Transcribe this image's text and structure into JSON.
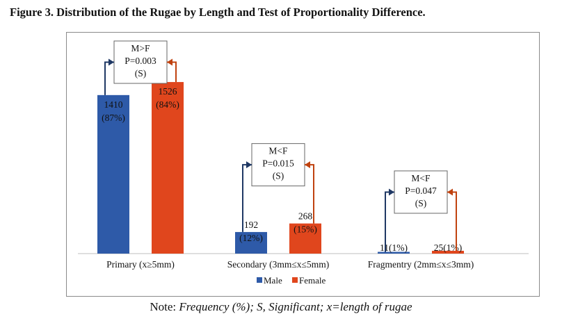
{
  "figure_title": "Figure 3. Distribution of the Rugae by Length and Test of Proportionality Difference.",
  "note": {
    "prefix": "Note: ",
    "text": "Frequency (%); S, Significant; x=length of  rugae"
  },
  "colors": {
    "male": "#2e5aa8",
    "female": "#e0461d",
    "frame": "#8a8a8a",
    "axis": "#bfbfbf",
    "arrow_male": "#1f3864",
    "arrow_female": "#c0420f"
  },
  "chart_data": {
    "type": "bar",
    "title": "Figure 3. Distribution of the Rugae by Length and Test of Proportionality Difference.",
    "categories": [
      "Primary (x≥5mm)",
      "Secondary (3mm≤x≤5mm)",
      "Fragmentry (2mm≤x≤3mm)"
    ],
    "series": [
      {
        "name": "Male",
        "color": "#2e5aa8",
        "values": [
          1410,
          192,
          11
        ],
        "percents": [
          "87%",
          "12%",
          "1%"
        ]
      },
      {
        "name": "Female",
        "color": "#e0461d",
        "values": [
          1526,
          268,
          25
        ],
        "percents": [
          "84%",
          "15%",
          "1%"
        ]
      }
    ],
    "data_labels": [
      {
        "male": [
          "1410",
          "(87%)"
        ],
        "female": [
          "1526",
          "(84%)"
        ]
      },
      {
        "male": [
          "192",
          "(12%)"
        ],
        "female": [
          "268",
          "(15%)"
        ]
      },
      {
        "male": [
          "11(1%)"
        ],
        "female": [
          "25(1%)"
        ]
      }
    ],
    "tests": [
      {
        "lines": [
          "M>F",
          "P=0.003",
          "(S)"
        ]
      },
      {
        "lines": [
          "M<F",
          "P=0.015",
          "(S)"
        ]
      },
      {
        "lines": [
          "M<F",
          "P=0.047",
          "(S)"
        ]
      }
    ],
    "ylim": [
      0,
      1650
    ],
    "grid": false,
    "legend_position": "bottom-center",
    "legend": [
      "Male",
      "Female"
    ]
  }
}
